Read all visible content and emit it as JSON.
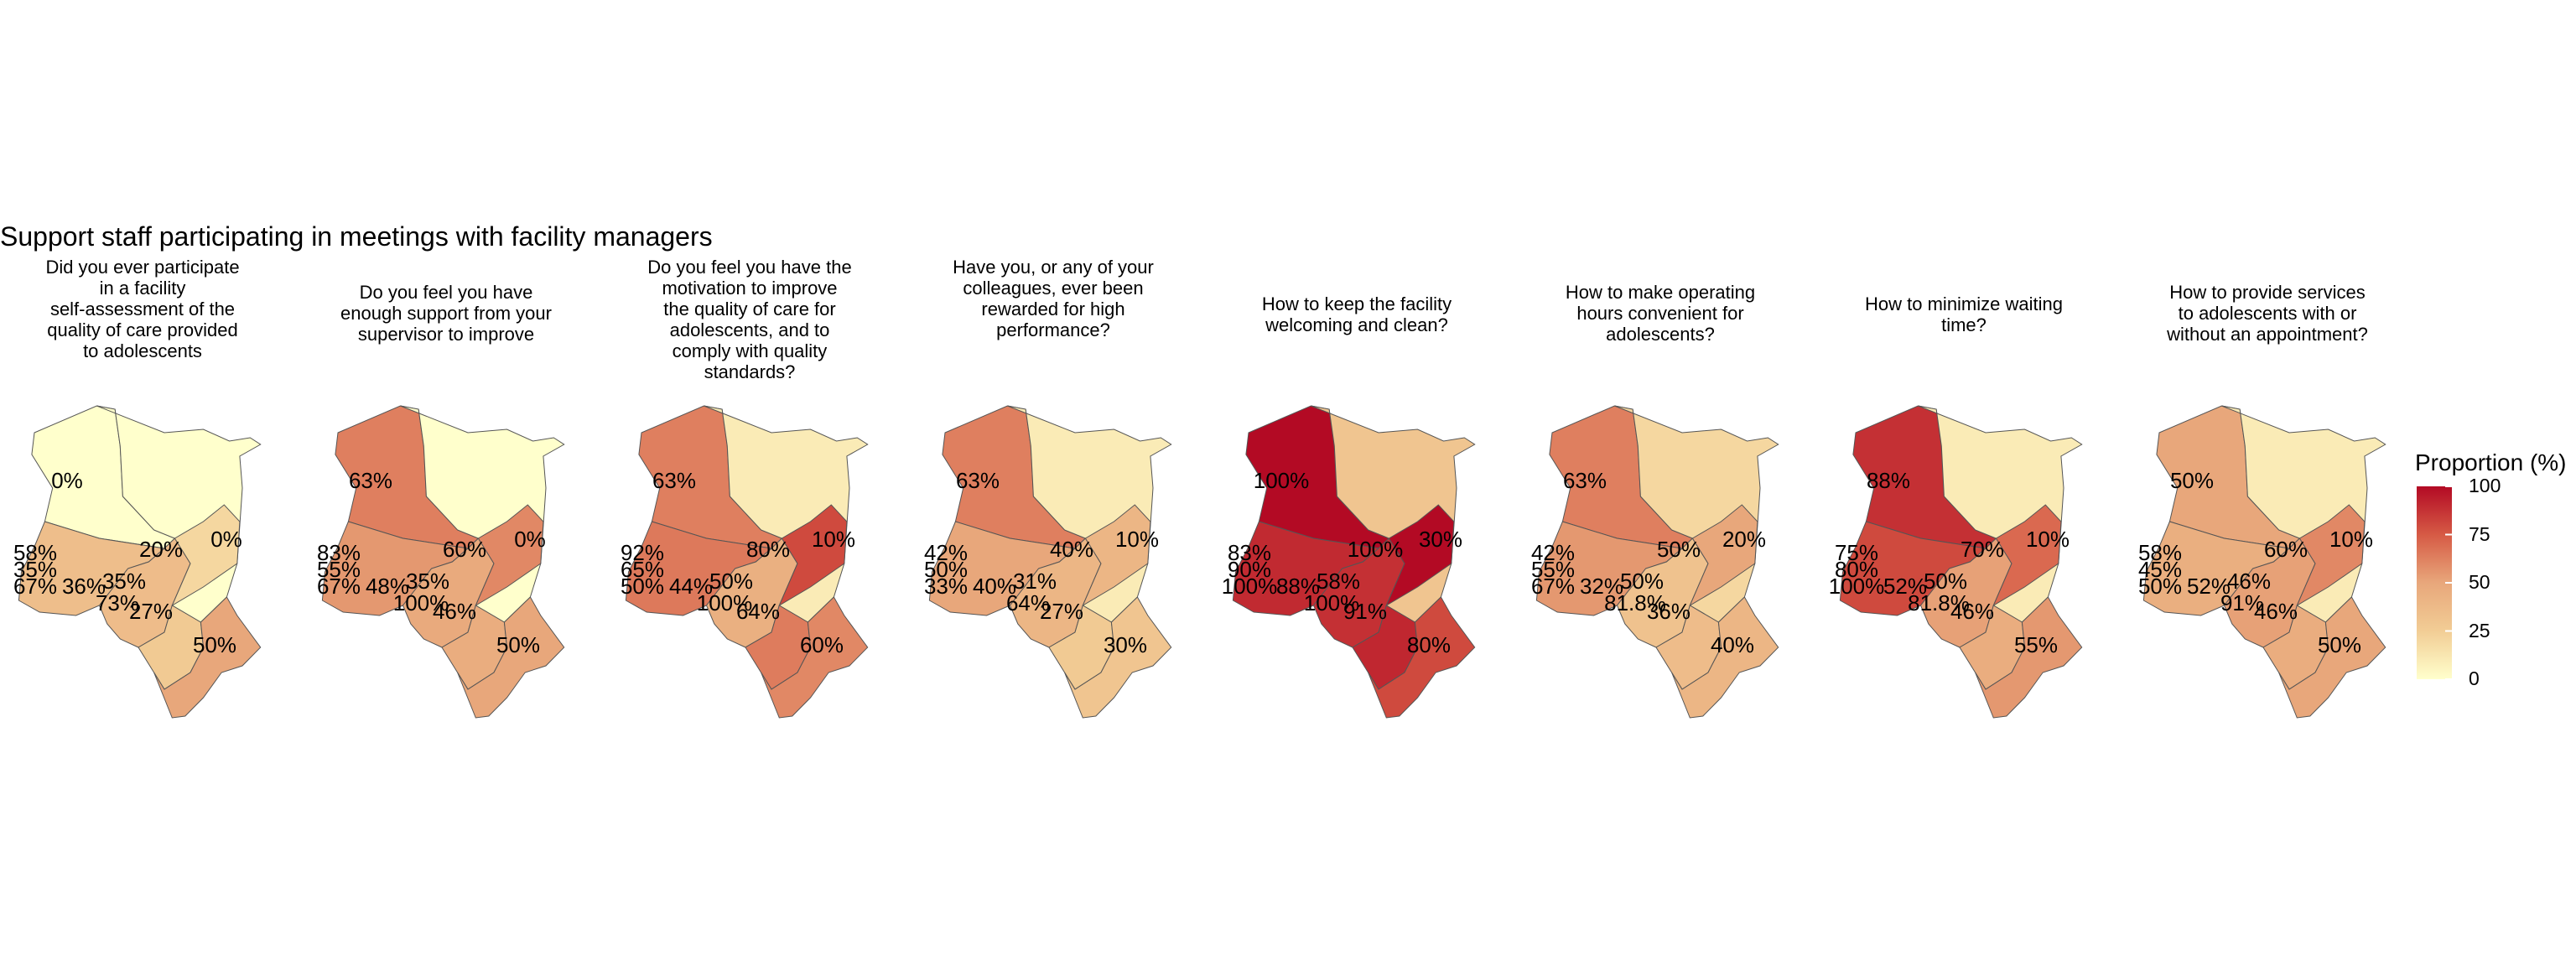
{
  "title": "Support staff participating in meetings with facility managers",
  "legend": {
    "title": "Proportion (%)",
    "ticks": [
      "100",
      "75",
      "50",
      "25",
      "0"
    ],
    "range": [
      0,
      100
    ],
    "colors": [
      "#FFFFCC",
      "#F2CD95",
      "#E8A77B",
      "#D65A45",
      "#B30A24"
    ]
  },
  "panels": [
    {
      "caption": "Did you ever participate\nin a facility\nself-assessment of the\nquality of care provided\nto adolescents",
      "regions": {
        "northwest": 0,
        "northeast": 0,
        "west": 35,
        "central": 36,
        "eastcentral": 20,
        "south": 27,
        "coast": 50
      },
      "labels": [
        [
          "0%",
          "northwest_lbl"
        ],
        [
          "0%",
          "northeast_lbl"
        ],
        [
          "20%",
          "eastcentral_lbl"
        ],
        [
          "58%",
          "w1"
        ],
        [
          "35%",
          "w2"
        ],
        [
          "67%",
          "w3"
        ],
        [
          "36%",
          "w4"
        ],
        [
          "35%",
          "c1"
        ],
        [
          "73%",
          "c2"
        ],
        [
          "27%",
          "s1"
        ],
        [
          "50%",
          "coast_lbl"
        ]
      ]
    },
    {
      "caption": "Do you feel you have\nenough support from your\nsupervisor to improve",
      "regions": {
        "northwest": 63,
        "northeast": 0,
        "west": 55,
        "central": 48,
        "eastcentral": 60,
        "south": 46,
        "coast": 50
      },
      "labels": [
        [
          "63%",
          "northwest_lbl"
        ],
        [
          "0%",
          "northeast_lbl"
        ],
        [
          "60%",
          "eastcentral_lbl"
        ],
        [
          "83%",
          "w1"
        ],
        [
          "55%",
          "w2"
        ],
        [
          "67%",
          "w3"
        ],
        [
          "48%",
          "w4"
        ],
        [
          "35%",
          "c1"
        ],
        [
          "100%",
          "c2"
        ],
        [
          "46%",
          "s1"
        ],
        [
          "50%",
          "coast_lbl"
        ]
      ]
    },
    {
      "caption": "Do you feel you have the\nmotivation to improve\nthe quality of care for\nadolescents, and to\ncomply with quality\nstandards?",
      "regions": {
        "northwest": 63,
        "northeast": 10,
        "west": 65,
        "central": 44,
        "eastcentral": 80,
        "south": 64,
        "coast": 60
      },
      "labels": [
        [
          "63%",
          "northwest_lbl"
        ],
        [
          "10%",
          "northeast_lbl"
        ],
        [
          "80%",
          "eastcentral_lbl"
        ],
        [
          "92%",
          "w1"
        ],
        [
          "65%",
          "w2"
        ],
        [
          "50%",
          "w3"
        ],
        [
          "44%",
          "w4"
        ],
        [
          "50%",
          "c1"
        ],
        [
          "100%",
          "c2"
        ],
        [
          "64%",
          "s1"
        ],
        [
          "60%",
          "coast_lbl"
        ]
      ]
    },
    {
      "caption": "Have you, or any of your\ncolleagues, ever been\nrewarded for high\nperformance?",
      "regions": {
        "northwest": 63,
        "northeast": 10,
        "west": 50,
        "central": 40,
        "eastcentral": 40,
        "south": 27,
        "coast": 30
      },
      "labels": [
        [
          "63%",
          "northwest_lbl"
        ],
        [
          "10%",
          "northeast_lbl"
        ],
        [
          "40%",
          "eastcentral_lbl"
        ],
        [
          "42%",
          "w1"
        ],
        [
          "50%",
          "w2"
        ],
        [
          "33%",
          "w3"
        ],
        [
          "40%",
          "w4"
        ],
        [
          "31%",
          "c1"
        ],
        [
          "64%",
          "c2"
        ],
        [
          "27%",
          "s1"
        ],
        [
          "30%",
          "coast_lbl"
        ]
      ]
    },
    {
      "caption": "How to keep the facility\nwelcoming and clean?",
      "regions": {
        "northwest": 100,
        "northeast": 30,
        "west": 90,
        "central": 88,
        "eastcentral": 100,
        "south": 91,
        "coast": 80
      },
      "labels": [
        [
          "100%",
          "northwest_lbl"
        ],
        [
          "30%",
          "northeast_lbl"
        ],
        [
          "100%",
          "eastcentral_lbl"
        ],
        [
          "83%",
          "w1"
        ],
        [
          "90%",
          "w2"
        ],
        [
          "100%",
          "w3"
        ],
        [
          "88%",
          "w4"
        ],
        [
          "58%",
          "c1"
        ],
        [
          "100%",
          "c2"
        ],
        [
          "91%",
          "s1"
        ],
        [
          "80%",
          "coast_lbl"
        ]
      ]
    },
    {
      "caption": "How to make operating\nhours convenient for\nadolescents?",
      "regions": {
        "northwest": 63,
        "northeast": 20,
        "west": 55,
        "central": 32,
        "eastcentral": 50,
        "south": 36,
        "coast": 40
      },
      "labels": [
        [
          "63%",
          "northwest_lbl"
        ],
        [
          "20%",
          "northeast_lbl"
        ],
        [
          "50%",
          "eastcentral_lbl"
        ],
        [
          "42%",
          "w1"
        ],
        [
          "55%",
          "w2"
        ],
        [
          "67%",
          "w3"
        ],
        [
          "32%",
          "w4"
        ],
        [
          "50%",
          "c1"
        ],
        [
          "81.8%",
          "c2"
        ],
        [
          "36%",
          "s1"
        ],
        [
          "40%",
          "coast_lbl"
        ]
      ]
    },
    {
      "caption": "How to minimize waiting\ntime?",
      "regions": {
        "northwest": 88,
        "northeast": 10,
        "west": 80,
        "central": 52,
        "eastcentral": 70,
        "south": 46,
        "coast": 55
      },
      "labels": [
        [
          "88%",
          "northwest_lbl"
        ],
        [
          "10%",
          "northeast_lbl"
        ],
        [
          "70%",
          "eastcentral_lbl"
        ],
        [
          "75%",
          "w1"
        ],
        [
          "80%",
          "w2"
        ],
        [
          "100%",
          "w3"
        ],
        [
          "52%",
          "w4"
        ],
        [
          "50%",
          "c1"
        ],
        [
          "81.8%",
          "c2"
        ],
        [
          "46%",
          "s1"
        ],
        [
          "55%",
          "coast_lbl"
        ]
      ]
    },
    {
      "caption": "How to provide services\nto adolescents with or\nwithout an appointment?",
      "regions": {
        "northwest": 50,
        "northeast": 10,
        "west": 45,
        "central": 52,
        "eastcentral": 60,
        "south": 46,
        "coast": 50
      },
      "labels": [
        [
          "50%",
          "northwest_lbl"
        ],
        [
          "10%",
          "northeast_lbl"
        ],
        [
          "60%",
          "eastcentral_lbl"
        ],
        [
          "58%",
          "w1"
        ],
        [
          "45%",
          "w2"
        ],
        [
          "50%",
          "w3"
        ],
        [
          "52%",
          "w4"
        ],
        [
          "46%",
          "c1"
        ],
        [
          "91%",
          "c2"
        ],
        [
          "46%",
          "s1"
        ],
        [
          "50%",
          "coast_lbl"
        ]
      ]
    }
  ]
}
